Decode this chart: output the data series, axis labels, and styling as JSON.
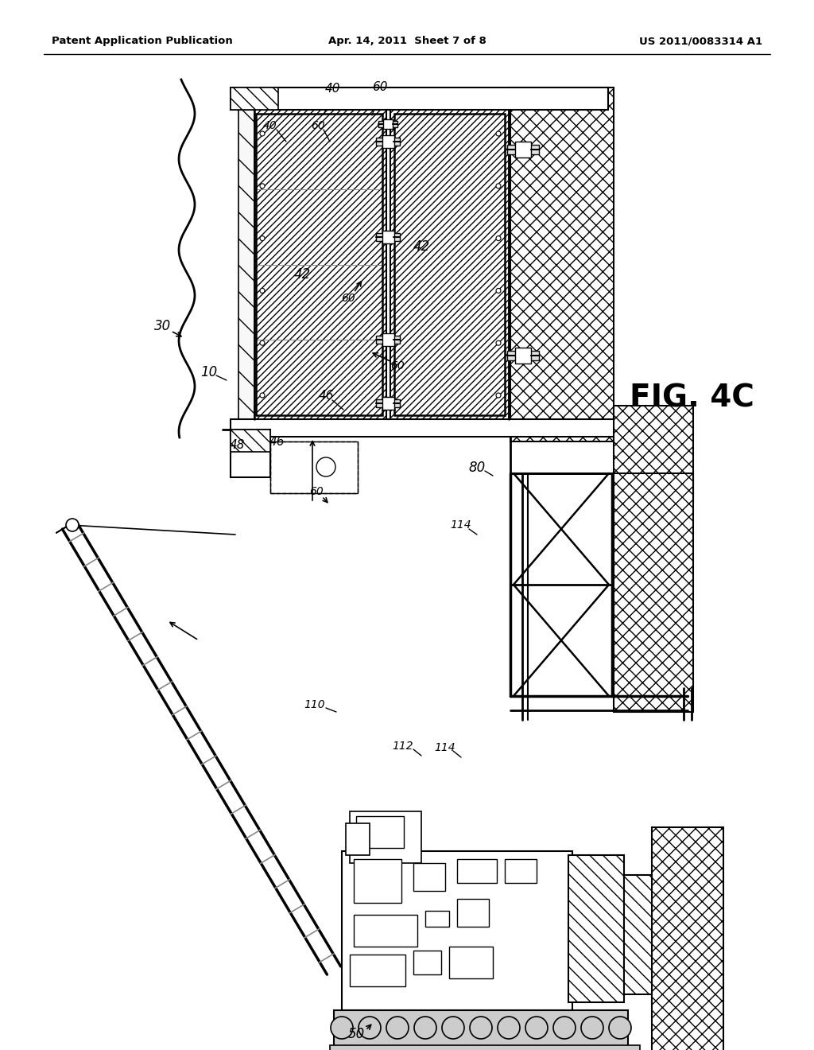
{
  "title_left": "Patent Application Publication",
  "title_center": "Apr. 14, 2011  Sheet 7 of 8",
  "title_right": "US 2011/0083314 A1",
  "fig_label": "FIG. 4C",
  "bg": "#ffffff",
  "black": "#000000",
  "gray": "#888888",
  "lgray": "#cccccc"
}
